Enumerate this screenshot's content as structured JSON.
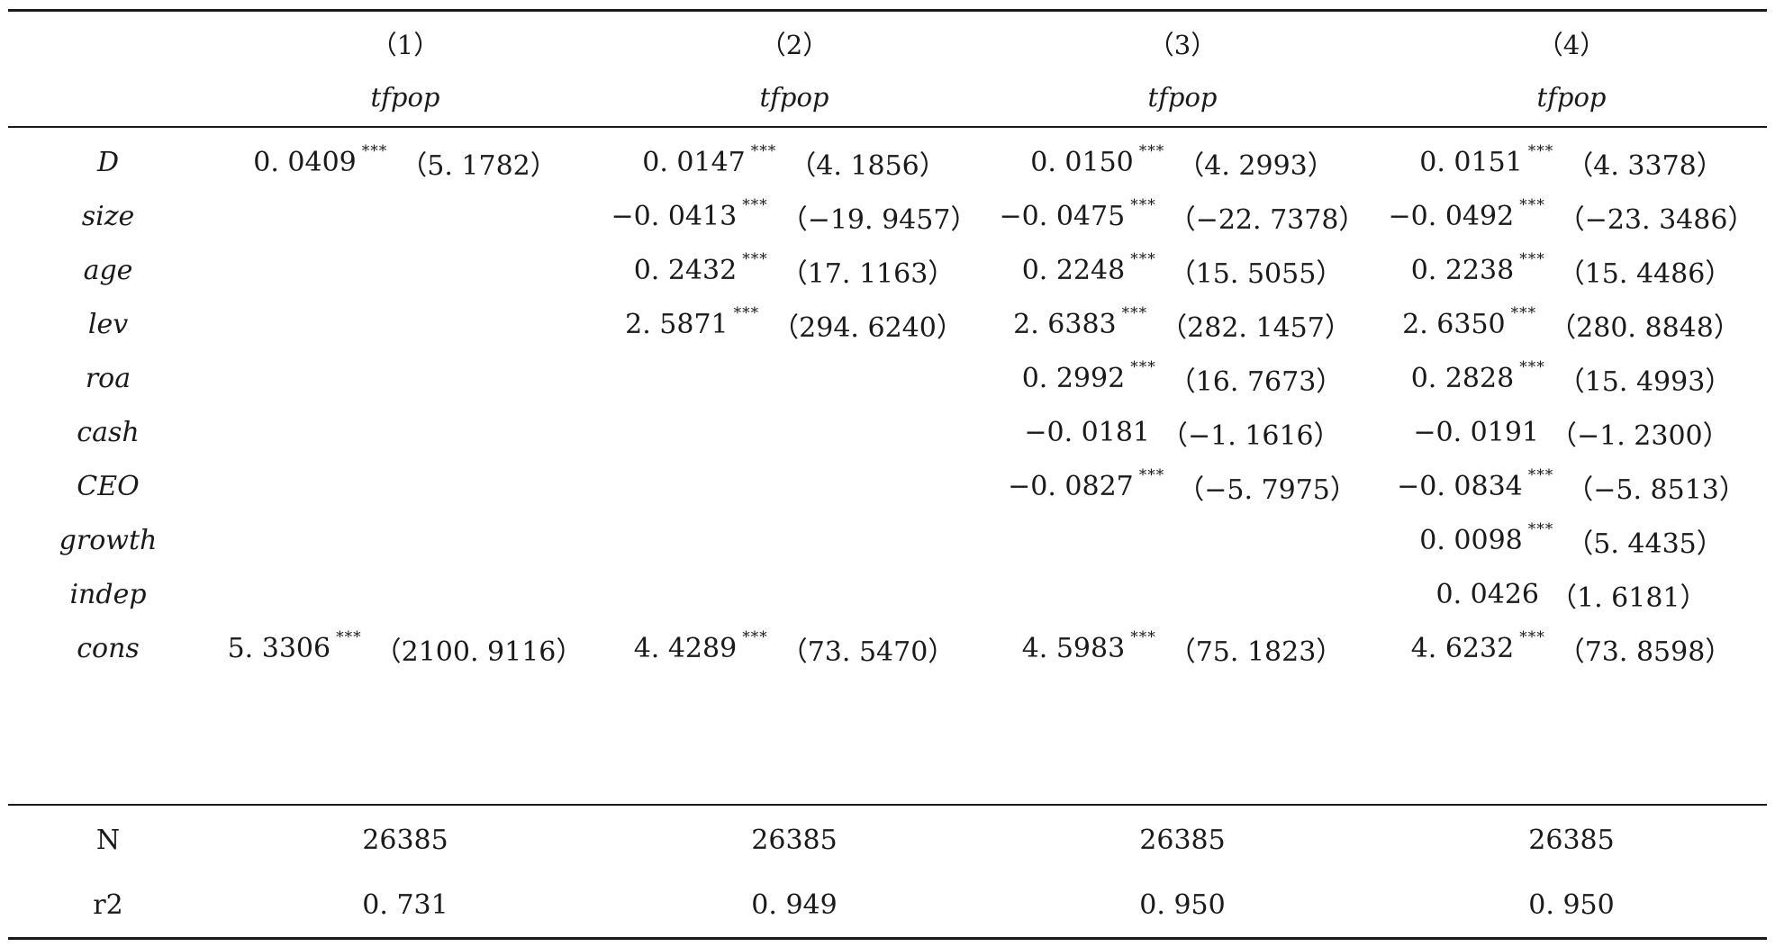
{
  "header": {
    "numbers": [
      "（1）",
      "（2）",
      "（3）",
      "（4）"
    ],
    "depvars": [
      "tfpop",
      "tfpop",
      "tfpop",
      "tfpop"
    ]
  },
  "rows": [
    {
      "label": "D",
      "cells": [
        {
          "coef": "0. 0409",
          "stars": "***",
          "t": "（5. 1782）"
        },
        {
          "coef": "0. 0147",
          "stars": "***",
          "t": "（4. 1856）"
        },
        {
          "coef": "0. 0150",
          "stars": "***",
          "t": "（4. 2993）"
        },
        {
          "coef": "0. 0151",
          "stars": "***",
          "t": "（4. 3378）"
        }
      ]
    },
    {
      "label": "size",
      "cells": [
        {
          "coef": "",
          "stars": "",
          "t": ""
        },
        {
          "coef": "−0. 0413",
          "stars": "***",
          "t": "（−19. 9457）"
        },
        {
          "coef": "−0. 0475",
          "stars": "***",
          "t": "（−22. 7378）"
        },
        {
          "coef": "−0. 0492",
          "stars": "***",
          "t": "（−23. 3486）"
        }
      ]
    },
    {
      "label": "age",
      "cells": [
        {
          "coef": "",
          "stars": "",
          "t": ""
        },
        {
          "coef": "0. 2432",
          "stars": "***",
          "t": "（17. 1163）"
        },
        {
          "coef": "0. 2248",
          "stars": "***",
          "t": "（15. 5055）"
        },
        {
          "coef": "0. 2238",
          "stars": "***",
          "t": "（15. 4486）"
        }
      ]
    },
    {
      "label": "lev",
      "cells": [
        {
          "coef": "",
          "stars": "",
          "t": ""
        },
        {
          "coef": "2. 5871",
          "stars": "***",
          "t": "（294. 6240）"
        },
        {
          "coef": "2. 6383",
          "stars": "***",
          "t": "（282. 1457）"
        },
        {
          "coef": "2. 6350",
          "stars": "***",
          "t": "（280. 8848）"
        }
      ]
    },
    {
      "label": "roa",
      "cells": [
        {
          "coef": "",
          "stars": "",
          "t": ""
        },
        {
          "coef": "",
          "stars": "",
          "t": ""
        },
        {
          "coef": "0. 2992",
          "stars": "***",
          "t": "（16. 7673）"
        },
        {
          "coef": "0. 2828",
          "stars": "***",
          "t": "（15. 4993）"
        }
      ]
    },
    {
      "label": "cash",
      "cells": [
        {
          "coef": "",
          "stars": "",
          "t": ""
        },
        {
          "coef": "",
          "stars": "",
          "t": ""
        },
        {
          "coef": "−0. 0181",
          "stars": "",
          "t": "（−1. 1616）"
        },
        {
          "coef": "−0. 0191",
          "stars": "",
          "t": "（−1. 2300）"
        }
      ]
    },
    {
      "label": "CEO",
      "cells": [
        {
          "coef": "",
          "stars": "",
          "t": ""
        },
        {
          "coef": "",
          "stars": "",
          "t": ""
        },
        {
          "coef": "−0. 0827",
          "stars": "***",
          "t": "（−5. 7975）"
        },
        {
          "coef": "−0. 0834",
          "stars": "***",
          "t": "（−5. 8513）"
        }
      ]
    },
    {
      "label": "growth",
      "cells": [
        {
          "coef": "",
          "stars": "",
          "t": ""
        },
        {
          "coef": "",
          "stars": "",
          "t": ""
        },
        {
          "coef": "",
          "stars": "",
          "t": ""
        },
        {
          "coef": "0. 0098",
          "stars": "***",
          "t": "（5. 4435）"
        }
      ]
    },
    {
      "label": "indep",
      "cells": [
        {
          "coef": "",
          "stars": "",
          "t": ""
        },
        {
          "coef": "",
          "stars": "",
          "t": ""
        },
        {
          "coef": "",
          "stars": "",
          "t": ""
        },
        {
          "coef": "0. 0426",
          "stars": "",
          "t": "（1. 6181）"
        }
      ]
    },
    {
      "label": "cons",
      "cells": [
        {
          "coef": "5. 3306",
          "stars": "***",
          "t": "（2100. 9116）"
        },
        {
          "coef": "4. 4289",
          "stars": "***",
          "t": "（73. 5470）"
        },
        {
          "coef": "4. 5983",
          "stars": "***",
          "t": "（75. 1823）"
        },
        {
          "coef": "4. 6232",
          "stars": "***",
          "t": "（73. 8598）"
        }
      ]
    }
  ],
  "stats": [
    {
      "label": "N",
      "values": [
        "26385",
        "26385",
        "26385",
        "26385"
      ]
    },
    {
      "label": "r2",
      "values": [
        "0. 731",
        "0. 949",
        "0. 950",
        "0. 950"
      ]
    }
  ]
}
